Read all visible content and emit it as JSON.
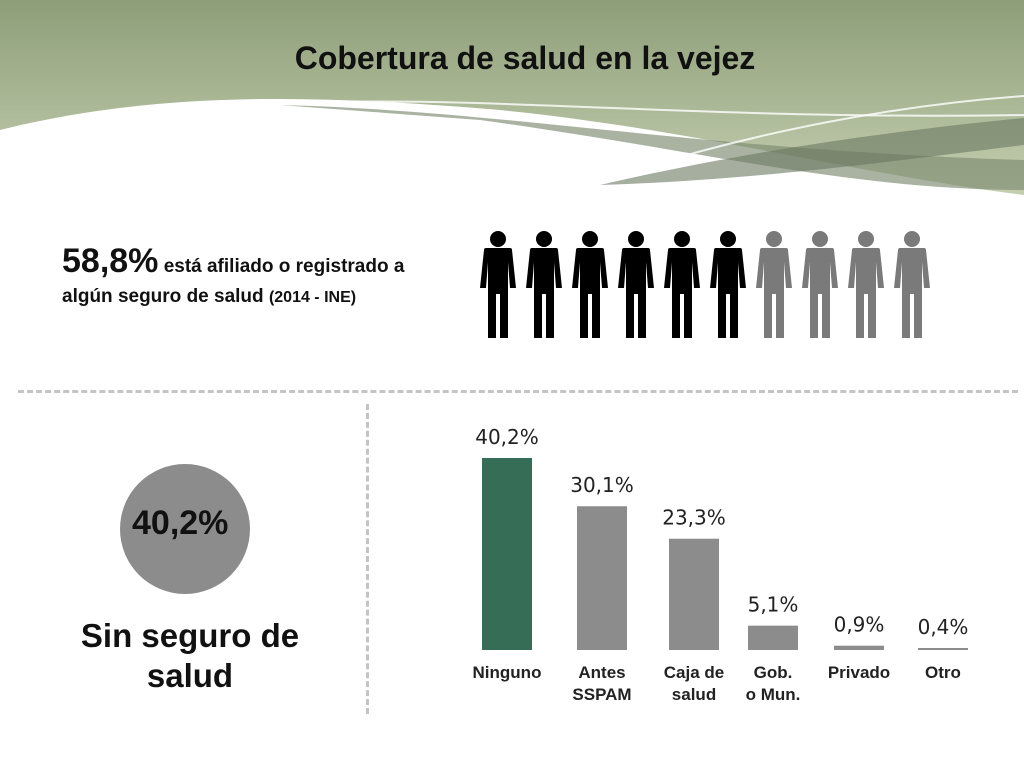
{
  "title": "Cobertura de salud en la vejez",
  "stat": {
    "percent": "58,8%",
    "text_part1": "está afiliado o registrado a algún seguro de salud",
    "source": "(2014 - INE)",
    "people_total": 10,
    "people_covered": 6
  },
  "no_coverage": {
    "percent": "40,2%",
    "label": "Sin seguro de salud"
  },
  "colors": {
    "highlight": "#356d56",
    "bar": "#8c8c8c",
    "person_dark": "#000000",
    "person_light": "#7a7a7a",
    "header_green": "#a6b58e"
  },
  "chart_data": {
    "type": "bar",
    "categories": [
      [
        "Ninguno"
      ],
      [
        "Antes",
        "SSPAM"
      ],
      [
        "Caja de",
        "salud"
      ],
      [
        "Gob.",
        "o Mun."
      ],
      [
        "Privado"
      ],
      [
        "Otro"
      ]
    ],
    "values": [
      40.2,
      30.1,
      23.3,
      5.1,
      0.9,
      0.4
    ],
    "value_labels": [
      "40,2%",
      "30,1%",
      "23,3%",
      "5,1%",
      "0,9%",
      "0,4%"
    ],
    "highlight_index": 0,
    "ylim": [
      0,
      40.2
    ]
  }
}
